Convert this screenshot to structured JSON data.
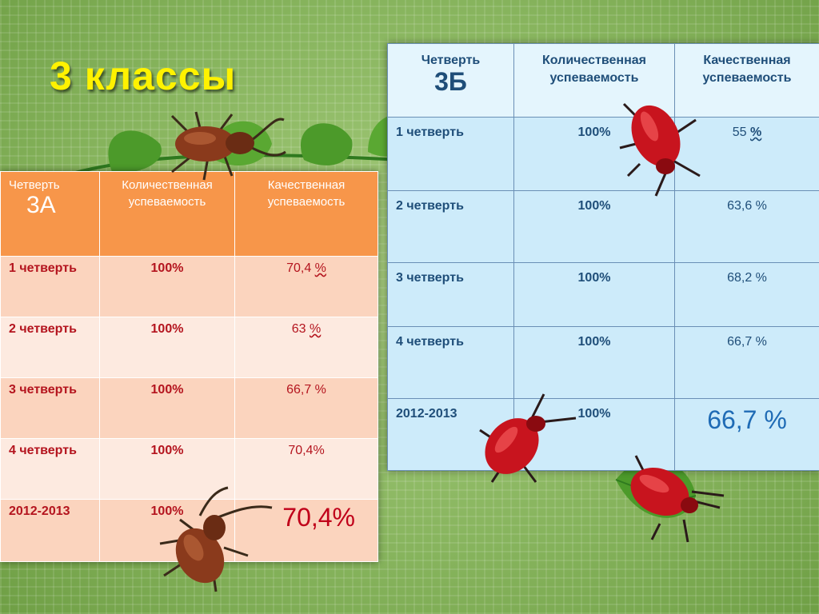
{
  "title": "3 классы",
  "colors": {
    "title": "#fff200",
    "table_a_header": "#f7964a",
    "table_a_row_odd": "#fbd4be",
    "table_a_row_even": "#fdeae0",
    "table_a_text": "#b4141e",
    "table_b_cell": "#cdebfa",
    "table_b_text": "#1f4e79",
    "background": "#8fb86a"
  },
  "decorations": [
    "leaf-icon",
    "stag-beetle-icon",
    "stag-beetle-icon",
    "red-beetle-icon",
    "red-beetle-icon",
    "red-beetle-icon"
  ],
  "table_a": {
    "header": {
      "quarter_label": "Четверть",
      "class_name": "3А",
      "quantitative": "Количественная успеваемость",
      "qualitative": "Качественная успеваемость"
    },
    "rows": [
      {
        "quarter": "1 четверть",
        "quant": "100%",
        "qual_value": "70,4",
        "qual_pct": "%"
      },
      {
        "quarter": "2 четверть",
        "quant": "100%",
        "qual_value": "63",
        "qual_pct": "%"
      },
      {
        "quarter": "3 четверть",
        "quant": "100%",
        "qual": "66,7 %"
      },
      {
        "quarter": "4 четверть",
        "quant": "100%",
        "qual": "70,4%"
      },
      {
        "quarter": "2012-2013",
        "quant": "100%",
        "qual": "70,4%"
      }
    ]
  },
  "table_b": {
    "header": {
      "quarter_label": "Четверть",
      "class_name": "3Б",
      "quantitative": "Количественная успеваемость",
      "qualitative": "Качественная успеваемость"
    },
    "rows": [
      {
        "quarter": "1 четверть",
        "quant": "100%",
        "qual_value": "55",
        "qual_pct": "%"
      },
      {
        "quarter": "2 четверть",
        "quant": "100%",
        "qual": "63,6 %"
      },
      {
        "quarter": "3 четверть",
        "quant": "100%",
        "qual": "68,2 %"
      },
      {
        "quarter": "4 четверть",
        "quant": "100%",
        "qual": "66,7 %"
      },
      {
        "quarter": "2012-2013",
        "quant": "100%",
        "qual": "66,7 %"
      }
    ]
  }
}
